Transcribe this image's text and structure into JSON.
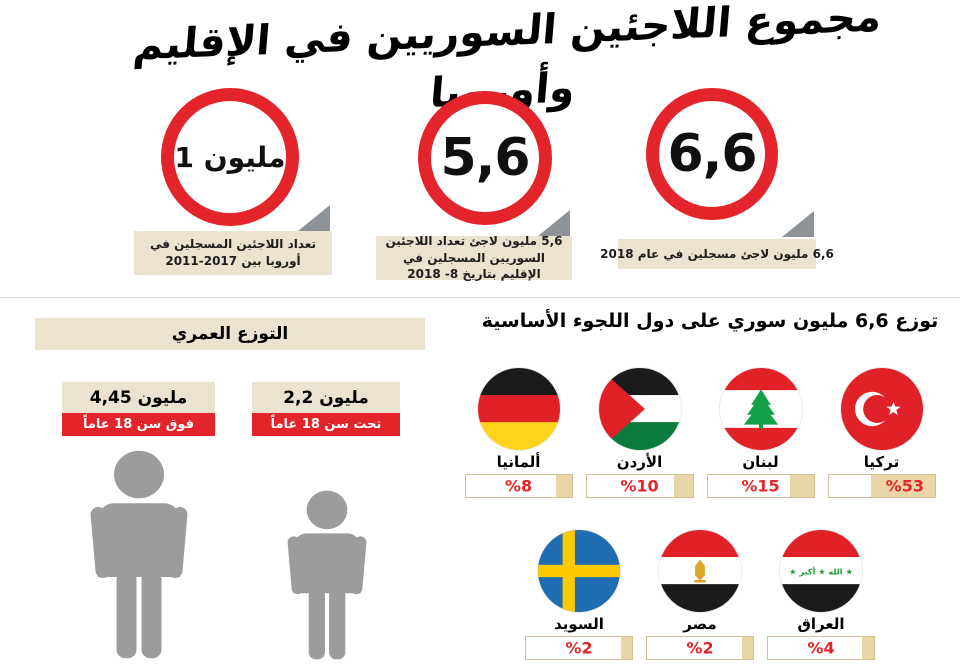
{
  "title": "مجموع اللاجئين السوريين في الإقليم وأوروبا",
  "colors": {
    "red": "#e3242b",
    "beige_box": "#ebe3d0",
    "bar_fill": "#e9d6a8",
    "bar_border": "#d3bf93",
    "person_gray": "#9c9c9c",
    "arrow_gray": "#8e9398"
  },
  "totals": {
    "circles": [
      {
        "value": "1 مليون",
        "caption": "تعداد اللاجئين المسجلين في أوروبا بين 2017-2011"
      },
      {
        "value": "5,6",
        "caption": "5,6 مليون لاجئ تعداد اللاجئين السوريين المسجلين في الإقليم بتاريخ 8- 2018"
      },
      {
        "value": "6,6",
        "caption": "6,6 مليون لاجئ مسجلين في عام 2018"
      }
    ]
  },
  "age": {
    "header": "التوزع العمري",
    "groups": [
      {
        "count": "4,45 مليون",
        "label": "فوق سن 18 عاماً"
      },
      {
        "count": "2,2 مليون",
        "label": "تحت سن 18 عاماً"
      }
    ]
  },
  "countries": {
    "header": "توزع 6,6 مليون سوري على دول اللجوء الأساسية",
    "rows": [
      [
        {
          "name": "ألمانيا",
          "value": 8,
          "pct_label": "%8",
          "flag": "germany"
        },
        {
          "name": "الأردن",
          "value": 10,
          "pct_label": "%10",
          "flag": "jordan"
        },
        {
          "name": "لبنان",
          "value": 15,
          "pct_label": "%15",
          "flag": "lebanon"
        },
        {
          "name": "تركيا",
          "value": 53,
          "pct_label": "%53",
          "flag": "turkey"
        }
      ],
      [
        {
          "name": "السويد",
          "value": 2,
          "pct_label": "%2",
          "flag": "sweden"
        },
        {
          "name": "مصر",
          "value": 2,
          "pct_label": "%2",
          "flag": "egypt"
        },
        {
          "name": "العراق",
          "value": 4,
          "pct_label": "%4",
          "flag": "iraq"
        }
      ]
    ],
    "iraq_flag_text": "★ الله ★ أكبر ★"
  },
  "chart_data": {
    "type": "bar",
    "title": "توزع 6,6 مليون سوري على دول اللجوء الأساسية",
    "categories": [
      "تركيا",
      "لبنان",
      "الأردن",
      "ألمانيا",
      "العراق",
      "مصر",
      "السويد"
    ],
    "values": [
      53,
      15,
      10,
      8,
      4,
      2,
      2
    ],
    "unit": "%",
    "totals_millions": [
      {
        "label": "تعداد اللاجئين المسجلين في أوروبا بين 2011-2017",
        "value": 1.0
      },
      {
        "label": "تعداد اللاجئين السوريين المسجلين في الإقليم بتاريخ 8-2018",
        "value": 5.6
      },
      {
        "label": "لاجئ مسجلين في عام 2018",
        "value": 6.6
      }
    ],
    "age_distribution_millions": [
      {
        "label": "فوق سن 18 عاماً",
        "value": 4.45
      },
      {
        "label": "تحت سن 18 عاماً",
        "value": 2.2
      }
    ]
  }
}
